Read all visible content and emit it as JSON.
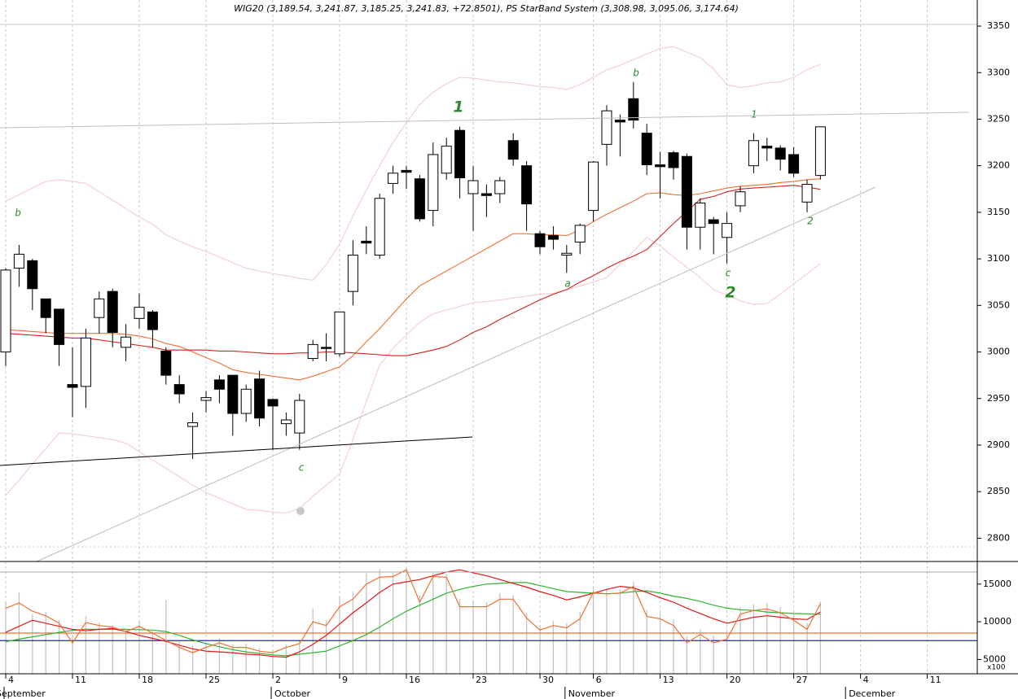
{
  "chart_data": [
    {
      "type": "candlestick",
      "title": "WIG20 (3,189.54, 3,241.87, 3,185.25, 3,241.83, +72.8501), PS StarBand System (3,308.98, 3,095.06, 3,174.64)",
      "categories": [
        "4",
        null,
        null,
        null,
        null,
        "11",
        null,
        null,
        null,
        null,
        "18",
        null,
        null,
        null,
        null,
        "25",
        null,
        null,
        null,
        null,
        "2",
        null,
        null,
        null,
        null,
        "9",
        null,
        null,
        null,
        null,
        "16",
        null,
        null,
        null,
        null,
        "23",
        null,
        null,
        null,
        null,
        "30",
        null,
        null,
        null,
        "6",
        null,
        null,
        null,
        null,
        "13",
        null,
        null,
        null,
        null,
        "20",
        null,
        null,
        null,
        null,
        "27",
        null,
        null,
        null,
        null,
        "4",
        null,
        null,
        null,
        null,
        "11"
      ],
      "month_labels": [
        "September",
        null,
        null,
        null,
        null,
        null,
        null,
        null,
        null,
        null,
        null,
        null,
        null,
        null,
        null,
        null,
        null,
        null,
        null,
        null,
        "October",
        null,
        null,
        null,
        null,
        null,
        null,
        null,
        null,
        null,
        null,
        null,
        null,
        null,
        null,
        null,
        null,
        null,
        null,
        null,
        null,
        null,
        "November",
        null,
        null,
        null,
        null,
        null,
        null,
        null,
        null,
        null,
        null,
        null,
        null,
        null,
        null,
        null,
        null,
        null,
        null,
        null,
        null,
        "December",
        null,
        null,
        null,
        null,
        null,
        null
      ],
      "open": [
        3000,
        3090,
        3098,
        3057,
        3046,
        2965,
        2963,
        3037,
        3065,
        3005,
        3036,
        3043,
        3001,
        2965,
        2920,
        2948,
        2970,
        2975,
        2934,
        2971,
        2949,
        2923,
        2913,
        2993,
        3005,
        2998,
        3065,
        3119,
        3104,
        3181,
        3195,
        3186,
        3152,
        3192,
        3238,
        3170,
        3170,
        3170,
        3227,
        3200,
        3127,
        3125,
        3104,
        3118,
        3152,
        3223,
        3249,
        3272,
        3235,
        3201,
        3214,
        3210,
        3134,
        3142,
        3123,
        3157,
        3200,
        3221,
        3219,
        3212,
        3161,
        3189.54,
        null,
        null,
        null,
        null,
        null,
        null,
        null,
        null
      ],
      "high": [
        3090,
        3115,
        3100,
        3057,
        3046,
        3005,
        3025,
        3065,
        3068,
        3030,
        3063,
        3045,
        3005,
        2975,
        2935,
        2958,
        2975,
        2975,
        2965,
        2980,
        2950,
        2935,
        2955,
        3013,
        3020,
        3043,
        3120,
        3135,
        3170,
        3200,
        3200,
        3190,
        3225,
        3230,
        3242,
        3200,
        3180,
        3188,
        3235,
        3205,
        3130,
        3135,
        3115,
        3138,
        3205,
        3265,
        3255,
        3290,
        3245,
        3215,
        3216,
        3213,
        3165,
        3145,
        3150,
        3178,
        3235,
        3230,
        3222,
        3220,
        3185,
        3241.87,
        null,
        null,
        null,
        null,
        null,
        null,
        null,
        null
      ],
      "low": [
        2985,
        3070,
        3045,
        3020,
        2985,
        2930,
        2940,
        3020,
        3005,
        2990,
        3025,
        3005,
        2965,
        2945,
        2885,
        2935,
        2945,
        2910,
        2925,
        2920,
        2895,
        2910,
        2895,
        2990,
        2990,
        2995,
        3050,
        3105,
        3100,
        3170,
        3175,
        3140,
        3135,
        3185,
        3165,
        3130,
        3145,
        3160,
        3200,
        3130,
        3105,
        3110,
        3085,
        3105,
        3140,
        3200,
        3210,
        3240,
        3190,
        3165,
        3185,
        3110,
        3110,
        3105,
        3095,
        3150,
        3192,
        3205,
        3195,
        3188,
        3150,
        3185.25,
        null,
        null,
        null,
        null,
        null,
        null,
        null,
        null
      ],
      "close": [
        3088,
        3105,
        3068,
        3037,
        3008,
        2962,
        3015,
        3057,
        3021,
        3016,
        3048,
        3024,
        2975,
        2955,
        2924,
        2951,
        2960,
        2934,
        2960,
        2929,
        2942,
        2927,
        2948,
        3008,
        3004,
        3043,
        3104,
        3117,
        3165,
        3192,
        3193,
        3143,
        3212,
        3221,
        3187,
        3184,
        3168,
        3184,
        3207,
        3159,
        3113,
        3121,
        3106,
        3136,
        3204,
        3259,
        3247,
        3249,
        3201,
        3199,
        3198,
        3134,
        3160,
        3138,
        3138,
        3172,
        3227,
        3219,
        3207,
        3192,
        3180,
        3241.83,
        null,
        null,
        null,
        null,
        null,
        null,
        null,
        null
      ],
      "candle_colors": {
        "up": "#ffffff",
        "down": "#000000"
      },
      "lines": [
        {
          "color": "#f6cccc",
          "values": [
            3162,
            3169,
            3176,
            3183,
            3185,
            3183,
            3181,
            3172,
            3163,
            3154,
            3145,
            3137,
            3126,
            3119,
            3113,
            3108,
            3102,
            3096,
            3090,
            3087,
            3084,
            3082,
            3079,
            3077,
            3094,
            3116,
            3146,
            3174,
            3200,
            3225,
            3246,
            3266,
            3279,
            3288,
            3295,
            3294,
            3292,
            3290,
            3289,
            3287,
            3285,
            3284,
            3282,
            3287,
            3295,
            3303,
            3308,
            3314,
            3320,
            3326,
            3328,
            3322,
            3316,
            3304,
            3287,
            3284,
            3286,
            3289,
            3290,
            3295,
            3303,
            3308.98,
            null,
            null,
            null,
            null,
            null,
            null,
            null,
            null
          ]
        },
        {
          "color": "#f6cccc",
          "values": [
            2846,
            2862,
            2880,
            2896,
            2913,
            2912,
            2910,
            2908,
            2906,
            2902,
            2893,
            2884,
            2875,
            2866,
            2857,
            2849,
            2843,
            2837,
            2831,
            2830,
            2828,
            2827,
            2832,
            2845,
            2857,
            2869,
            2906,
            2947,
            2986,
            3004,
            3018,
            3032,
            3041,
            3045,
            3049,
            3053,
            3054,
            3056,
            3058,
            3060,
            3062,
            3063,
            3067,
            3071,
            3075,
            3080,
            3094,
            3108,
            3123,
            3114,
            3102,
            3091,
            3080,
            3067,
            3061,
            3055,
            3051,
            3052,
            3062,
            3073,
            3084,
            3095.06,
            null,
            null,
            null,
            null,
            null,
            null,
            null,
            null
          ]
        },
        {
          "color": "#f07030",
          "values": [
            3024,
            3023,
            3022,
            3021,
            3020,
            3020,
            3020,
            3020,
            3020,
            3019,
            3017,
            3014,
            3009,
            3006,
            3000,
            2994,
            2988,
            2981,
            2978,
            2976,
            2974,
            2972,
            2970,
            2974,
            2979,
            2984,
            2996,
            3011,
            3025,
            3041,
            3057,
            3071,
            3079,
            3087,
            3095,
            3103,
            3111,
            3119,
            3127,
            3127,
            3126,
            3126,
            3125,
            3131,
            3140,
            3148,
            3155,
            3162,
            3170,
            3171,
            3169,
            3168,
            3170,
            3173,
            3176,
            3178,
            3179,
            3180,
            3182,
            3183,
            3185,
            3186,
            null,
            null,
            null,
            null,
            null,
            null,
            null,
            null
          ]
        },
        {
          "color": "#d42020",
          "values": [
            3020,
            3019,
            3018,
            3017,
            3016,
            3015,
            3015,
            3013,
            3011,
            3009,
            3007,
            3005,
            3002,
            3002,
            3002,
            3002,
            3001,
            3001,
            3000,
            2999,
            2998,
            2998,
            2999,
            2999,
            3000,
            3000,
            2999,
            2998,
            2997,
            2996,
            2996,
            2999,
            3002,
            3006,
            3013,
            3021,
            3027,
            3035,
            3042,
            3049,
            3056,
            3062,
            3067,
            3075,
            3082,
            3090,
            3097,
            3103,
            3110,
            3124,
            3138,
            3151,
            3164,
            3167,
            3172,
            3175,
            3176,
            3177,
            3178,
            3179,
            3177,
            3174.64,
            null,
            null,
            null,
            null,
            null,
            null,
            null,
            null
          ]
        }
      ],
      "ylim": [
        2775,
        3378
      ],
      "yticks": [
        2800,
        2850,
        2900,
        2950,
        3000,
        3050,
        3100,
        3150,
        3200,
        3250,
        3300,
        3350
      ],
      "xgrid": true,
      "annotation_color": "#2a8a2a",
      "annotations": [
        "b",
        "1",
        "b",
        "1",
        "a",
        "c",
        "c",
        "2",
        "2"
      ]
    },
    {
      "type": "volume",
      "unit_label": "x100",
      "values": [
        12600,
        13900,
        11000,
        11300,
        10200,
        8200,
        10800,
        9900,
        9600,
        9000,
        10100,
        8700,
        12900,
        7400,
        6800,
        7300,
        7800,
        7000,
        7100,
        6500,
        6300,
        7000,
        7600,
        11800,
        10200,
        13400,
        14000,
        16400,
        17000,
        16500,
        17200,
        13500,
        16500,
        16300,
        13000,
        12800,
        12600,
        13800,
        13500,
        11200,
        9600,
        10100,
        9800,
        11300,
        14600,
        14400,
        14300,
        15300,
        11600,
        11200,
        10300,
        8100,
        9000,
        8200,
        8500,
        11900,
        12300,
        12500,
        12000,
        11000,
        9800,
        12700,
        null,
        null,
        null,
        null,
        null,
        null,
        null,
        null
      ],
      "color": "#c4c4c4",
      "lines": [
        {
          "color": "#2fb52f",
          "values": [
            7350,
            7700,
            8000,
            8300,
            8600,
            8850,
            9000,
            9000,
            9000,
            9000,
            8950,
            8900,
            8700,
            8200,
            7600,
            7100,
            6700,
            6300,
            6000,
            5800,
            5600,
            5500,
            5700,
            5900,
            6100,
            6800,
            7500,
            8300,
            9300,
            10400,
            11400,
            12200,
            13000,
            13800,
            14300,
            14700,
            15000,
            15100,
            15200,
            15200,
            14800,
            14400,
            14000,
            13900,
            13800,
            13700,
            13800,
            14000,
            14100,
            13800,
            13400,
            13100,
            12700,
            12200,
            11800,
            11600,
            11500,
            11300,
            11200,
            11100,
            11050,
            11000,
            null,
            null,
            null,
            null,
            null,
            null,
            null,
            null
          ]
        },
        {
          "color": "#e01818",
          "values": [
            8600,
            9400,
            10200,
            9800,
            9400,
            9000,
            8800,
            9000,
            9100,
            8700,
            8200,
            7800,
            7400,
            6900,
            6400,
            6100,
            6000,
            5900,
            5700,
            5600,
            5400,
            5300,
            6000,
            7000,
            8200,
            9700,
            11200,
            12500,
            13900,
            15000,
            15300,
            15600,
            16100,
            16600,
            16900,
            16500,
            16100,
            15600,
            15100,
            14600,
            14000,
            13500,
            12900,
            13300,
            13800,
            14300,
            14700,
            14500,
            13900,
            13200,
            12600,
            11800,
            11100,
            10400,
            9800,
            10200,
            10600,
            10800,
            10600,
            10400,
            10300,
            11300,
            null,
            null,
            null,
            null,
            null,
            null,
            null,
            null
          ]
        },
        {
          "color": "#f07030",
          "values": [
            11800,
            12500,
            11400,
            10800,
            9800,
            7200,
            9900,
            9500,
            9300,
            8700,
            9400,
            8500,
            7500,
            6600,
            5900,
            6600,
            7200,
            6600,
            6600,
            6100,
            5900,
            6600,
            7100,
            10000,
            9500,
            12000,
            13000,
            15000,
            15900,
            16000,
            16900,
            12600,
            16000,
            15900,
            12000,
            12000,
            12000,
            13000,
            13000,
            10500,
            8900,
            9500,
            9200,
            10400,
            13900,
            13700,
            13800,
            14700,
            10700,
            10400,
            9500,
            7200,
            8300,
            7200,
            7700,
            11000,
            11500,
            11700,
            11200,
            10200,
            9000,
            12400,
            null,
            null,
            null,
            null,
            null,
            null,
            null,
            null
          ]
        }
      ],
      "hlines": [
        {
          "value": 8500,
          "color": "#f07030"
        },
        {
          "value": 7500,
          "color": "#2020d0"
        }
      ],
      "ylim": [
        3100,
        18000
      ],
      "yticks": [
        5000,
        10000,
        15000
      ]
    }
  ]
}
